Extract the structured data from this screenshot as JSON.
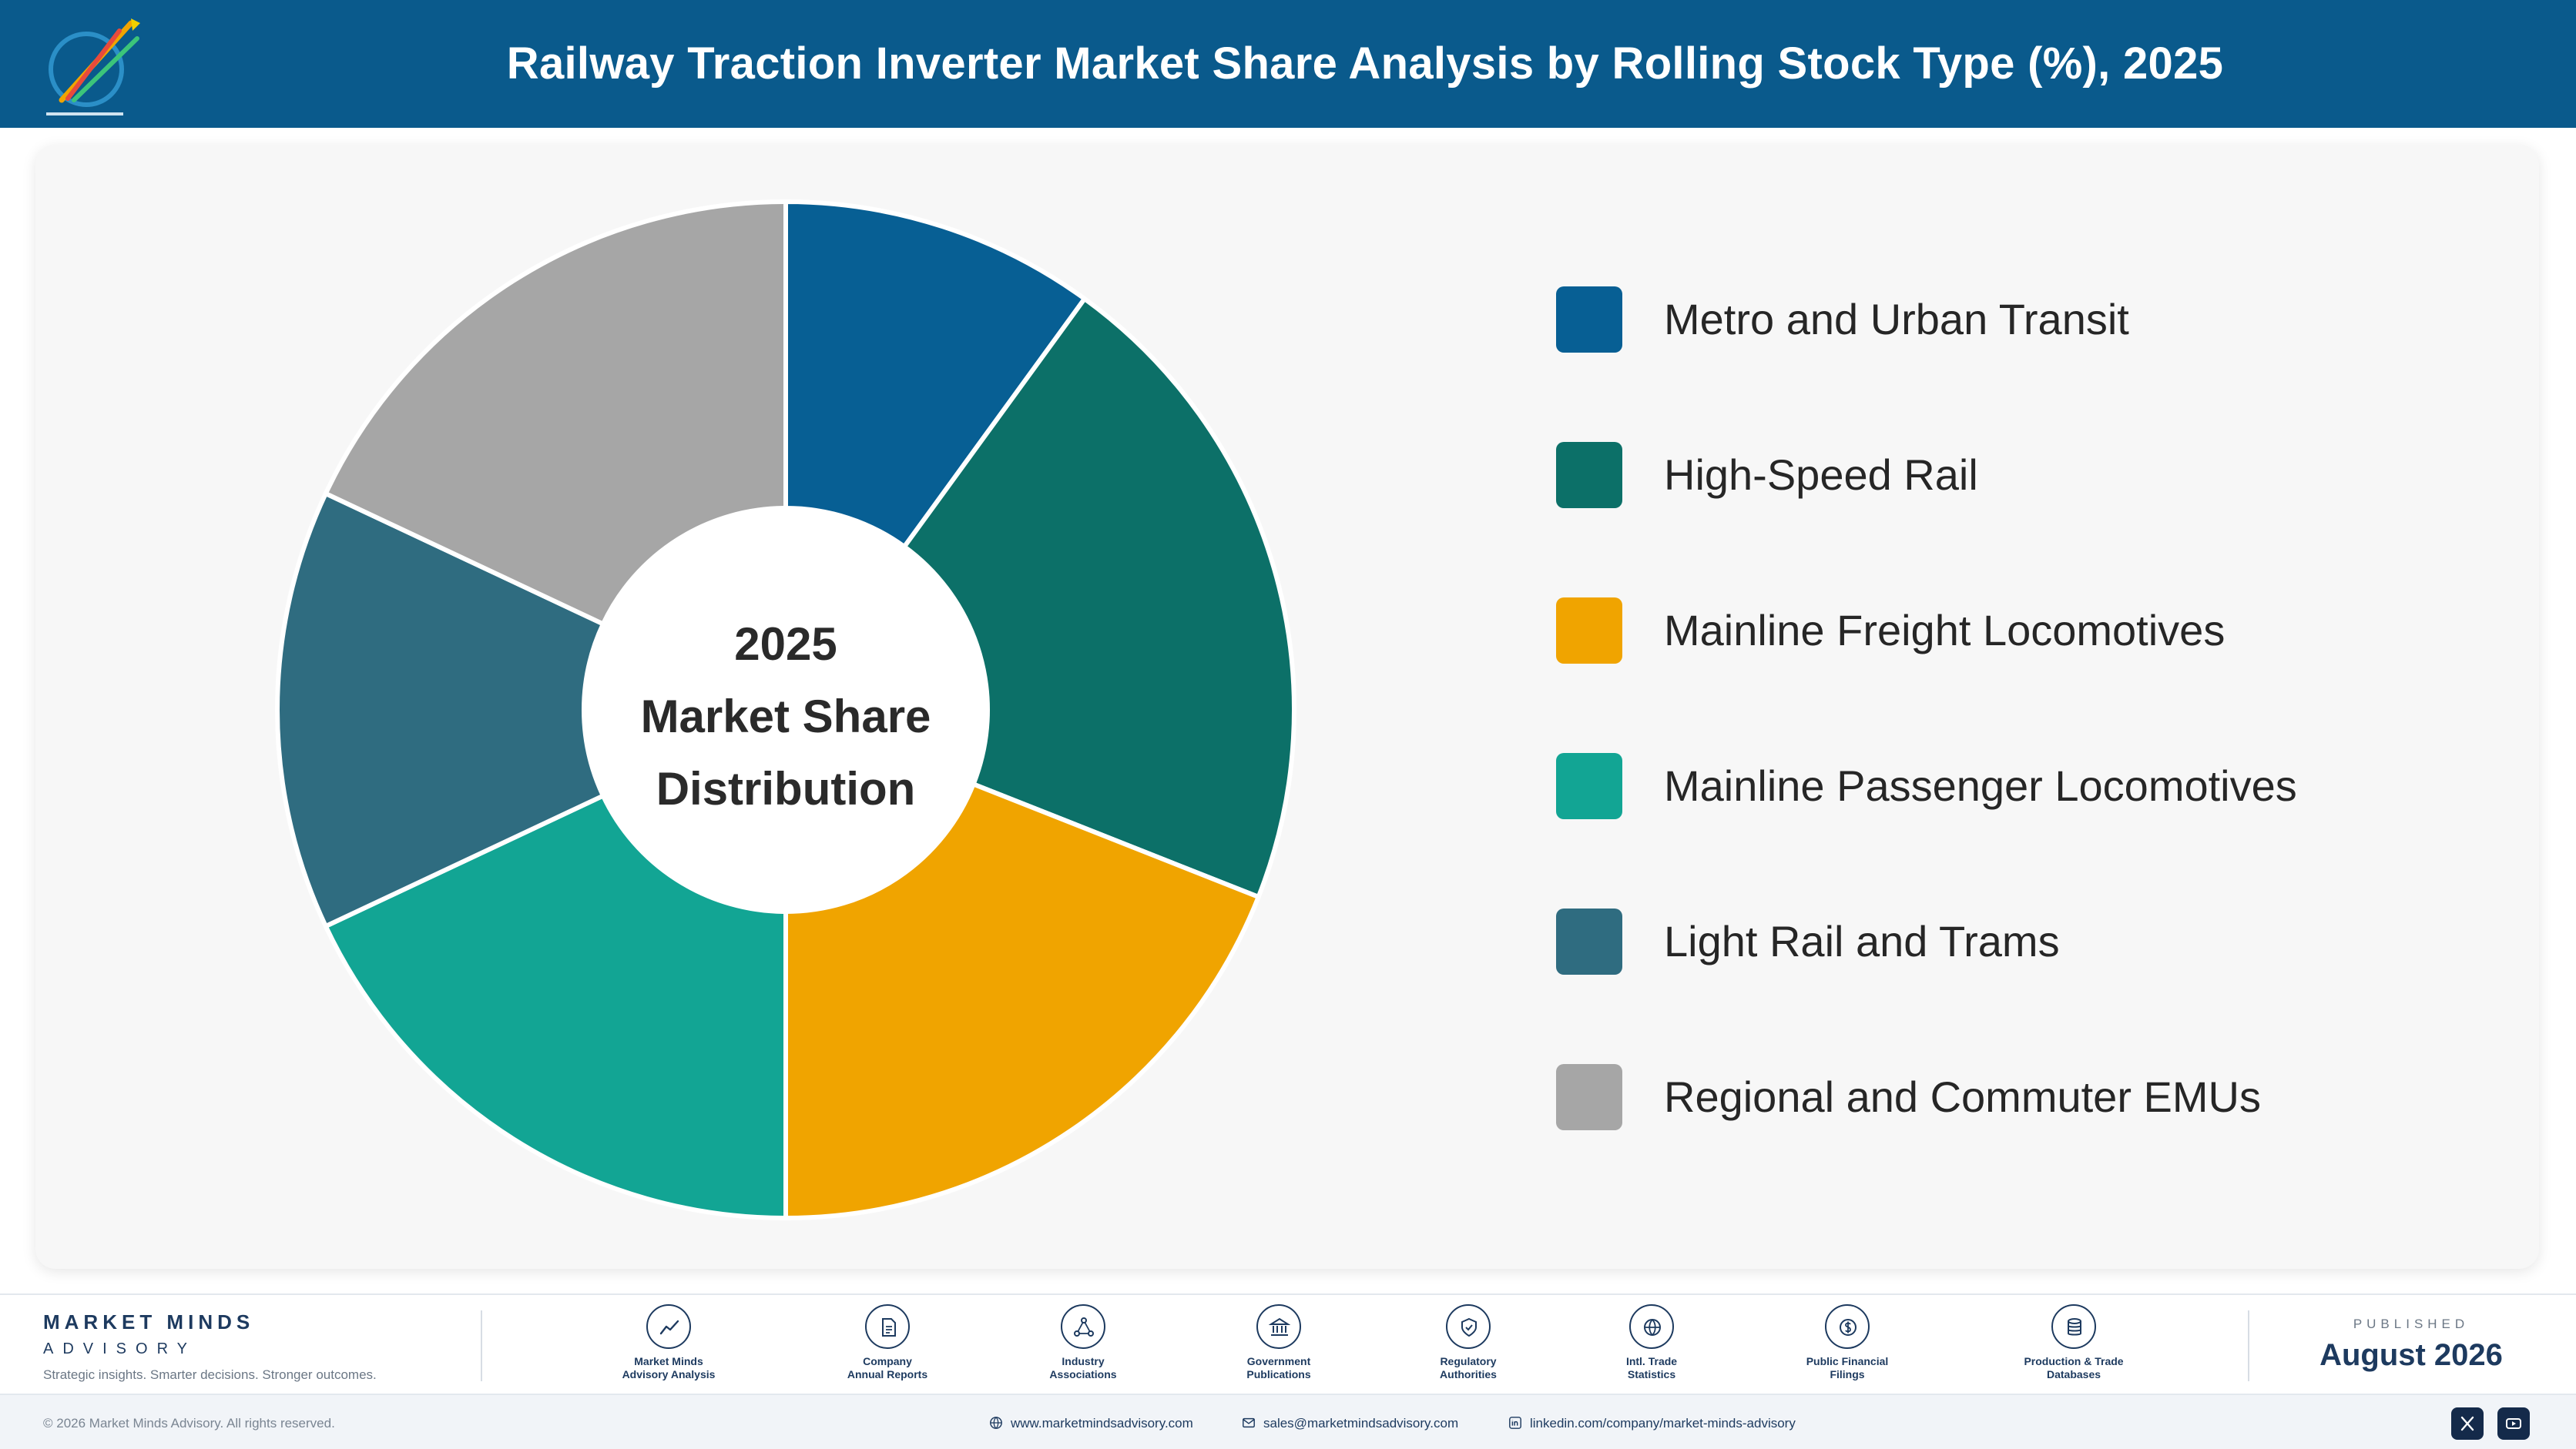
{
  "header": {
    "title": "Railway Traction Inverter Market Share Analysis by Rolling Stock Type (%), 2025",
    "logo_icon": "market-minds-logo-icon"
  },
  "center_label": {
    "line1": "2025",
    "line2": "Market Share",
    "line3": "Distribution"
  },
  "chart_data": {
    "type": "pie",
    "donut": true,
    "year": "2025",
    "legend_position": "right",
    "start_angle_deg": 0,
    "direction": "clockwise",
    "categories": [
      "Metro and Urban Transit",
      "High-Speed Rail",
      "Mainline Freight Locomotives",
      "Mainline Passenger Locomotives",
      "Light Rail and Trams",
      "Regional and Commuter EMUs"
    ],
    "values": [
      10,
      21,
      19,
      18,
      14,
      18
    ],
    "colors": [
      "#075f94",
      "#0c7068",
      "#f0a400",
      "#12a594",
      "#2f6c80",
      "#a6a6a6"
    ]
  },
  "footer": {
    "brand_name": "MARKET MINDS",
    "brand_sub": "ADVISORY",
    "brand_tag": "Strategic insights. Smarter decisions. Stronger outcomes.",
    "sources": [
      {
        "icon": "chart-line-icon",
        "line1": "Market Minds",
        "line2": "Advisory Analysis"
      },
      {
        "icon": "document-icon",
        "line1": "Company",
        "line2": "Annual Reports"
      },
      {
        "icon": "network-icon",
        "line1": "Industry",
        "line2": "Associations"
      },
      {
        "icon": "government-building-icon",
        "line1": "Government",
        "line2": "Publications"
      },
      {
        "icon": "shield-check-icon",
        "line1": "Regulatory",
        "line2": "Authorities"
      },
      {
        "icon": "globe-icon",
        "line1": "Intl. Trade",
        "line2": "Statistics"
      },
      {
        "icon": "currency-icon",
        "line1": "Public Financial",
        "line2": "Filings"
      },
      {
        "icon": "database-icon",
        "line1": "Production & Trade",
        "line2": "Databases"
      }
    ],
    "published_label": "PUBLISHED",
    "published_date": "August 2026",
    "copyright": "© 2026 Market Minds Advisory. All rights reserved.",
    "website": "www.marketmindsadvisory.com",
    "email": "sales@marketmindsadvisory.com",
    "linkedin": "linkedin.com/company/market-minds-advisory",
    "social": [
      "x-icon",
      "youtube-icon"
    ]
  }
}
